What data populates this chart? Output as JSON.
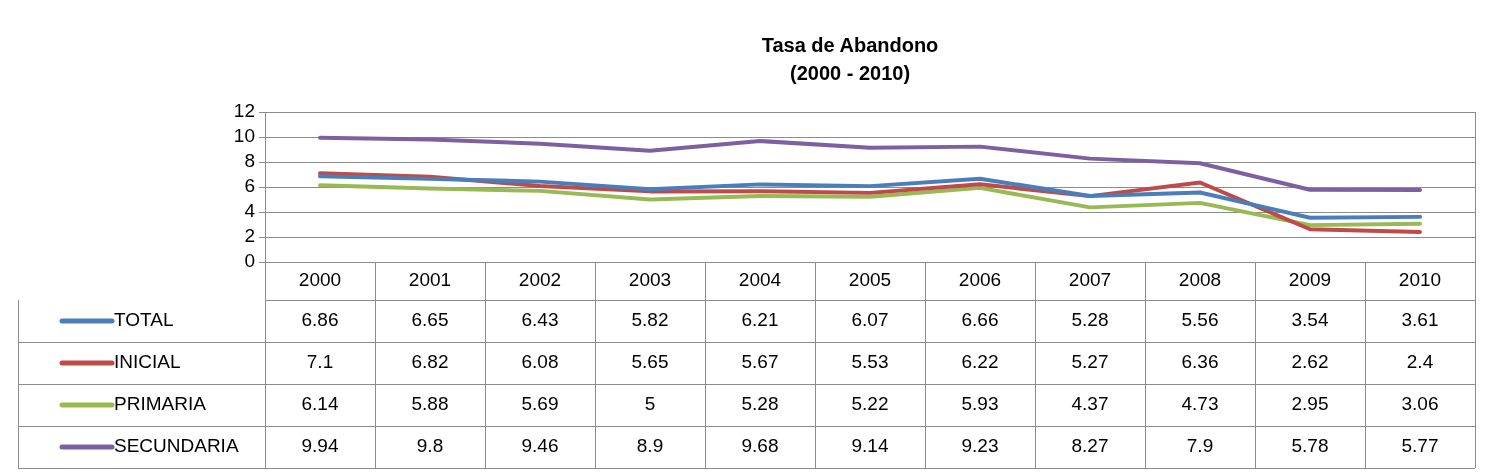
{
  "chart_data": {
    "type": "line",
    "title": "Tasa de Abandono",
    "subtitle": "(2000 - 2010)",
    "categories": [
      "2000",
      "2001",
      "2002",
      "2003",
      "2004",
      "2005",
      "2006",
      "2007",
      "2008",
      "2009",
      "2010"
    ],
    "series": [
      {
        "name": "TOTAL",
        "color": "#4a7ebb",
        "values": [
          6.86,
          6.65,
          6.43,
          5.82,
          6.21,
          6.07,
          6.66,
          5.28,
          5.56,
          3.54,
          3.61
        ]
      },
      {
        "name": "INICIAL",
        "color": "#be4b48",
        "values": [
          7.1,
          6.82,
          6.08,
          5.65,
          5.67,
          5.53,
          6.22,
          5.27,
          6.36,
          2.62,
          2.4
        ]
      },
      {
        "name": "PRIMARIA",
        "color": "#98b954",
        "values": [
          6.14,
          5.88,
          5.69,
          5,
          5.28,
          5.22,
          5.93,
          4.37,
          4.73,
          2.95,
          3.06
        ]
      },
      {
        "name": "SECUNDARIA",
        "color": "#7d60a0",
        "values": [
          9.94,
          9.8,
          9.46,
          8.9,
          9.68,
          9.14,
          9.23,
          8.27,
          7.9,
          5.78,
          5.77
        ]
      }
    ],
    "ylim": [
      0,
      12
    ],
    "yticks": [
      0,
      2,
      4,
      6,
      8,
      10,
      12
    ],
    "grid": "y",
    "legend": "bottom",
    "data_labels": true,
    "marker": "none",
    "line_style": "solid"
  }
}
